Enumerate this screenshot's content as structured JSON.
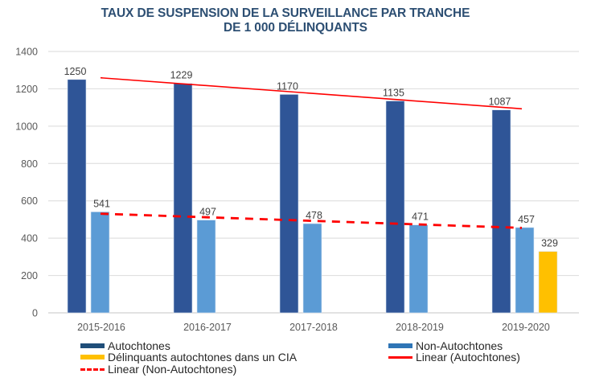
{
  "chart_data": {
    "type": "bar",
    "title": "TAUX DE SUSPENSION DE LA SURVEILLANCE PAR TRANCHE DE 1 000 DÉLINQUANTS",
    "title_lines": [
      "TAUX DE SUSPENSION DE LA SURVEILLANCE PAR TRANCHE",
      "DE 1 000 DÉLINQUANTS"
    ],
    "xlabel": "",
    "ylabel": "",
    "ylim": [
      0,
      1400
    ],
    "yticks": [
      0,
      200,
      400,
      600,
      800,
      1000,
      1200,
      1400
    ],
    "grid": true,
    "legend_position": "bottom",
    "categories": [
      "2015-2016",
      "2016-2017",
      "2017-2018",
      "2018-2019",
      "2019-2020"
    ],
    "series": [
      {
        "name": "Autochtones",
        "type": "bar",
        "color": "#2F5597",
        "legend_color": "#1F4E79",
        "values": [
          1250,
          1229,
          1170,
          1135,
          1087
        ]
      },
      {
        "name": "Non-Autochtones",
        "type": "bar",
        "color": "#5B9BD5",
        "legend_color": "#2E75B6",
        "values": [
          541,
          497,
          478,
          471,
          457
        ]
      },
      {
        "name": "Délinquants autochtones dans un CIA",
        "type": "bar",
        "color": "#FFC000",
        "legend_color": "#FFC000",
        "values": [
          null,
          null,
          null,
          null,
          329
        ]
      },
      {
        "name": "Linear (Autochtones)",
        "type": "trendline",
        "style": "solid",
        "color": "#FF0000",
        "of": "Autochtones",
        "values": [
          1259,
          1218,
          1176,
          1135,
          1093
        ]
      },
      {
        "name": "Linear (Non-Autochtones)",
        "type": "trendline",
        "style": "dashed",
        "color": "#FF0000",
        "of": "Non-Autochtones",
        "values": [
          531,
          512,
          493,
          474,
          455
        ]
      }
    ],
    "legend": [
      {
        "label": "Autochtones",
        "kind": "bar",
        "color": "#1F4E79"
      },
      {
        "label": "Non-Autochtones",
        "kind": "bar",
        "color": "#2E75B6"
      },
      {
        "label": "Délinquants autochtones dans un CIA",
        "kind": "bar",
        "color": "#FFC000"
      },
      {
        "label": "Linear (Autochtones)",
        "kind": "line",
        "color": "#FF0000"
      },
      {
        "label": "Linear (Non-Autochtones)",
        "kind": "dashed",
        "color": "#FF0000"
      }
    ]
  }
}
